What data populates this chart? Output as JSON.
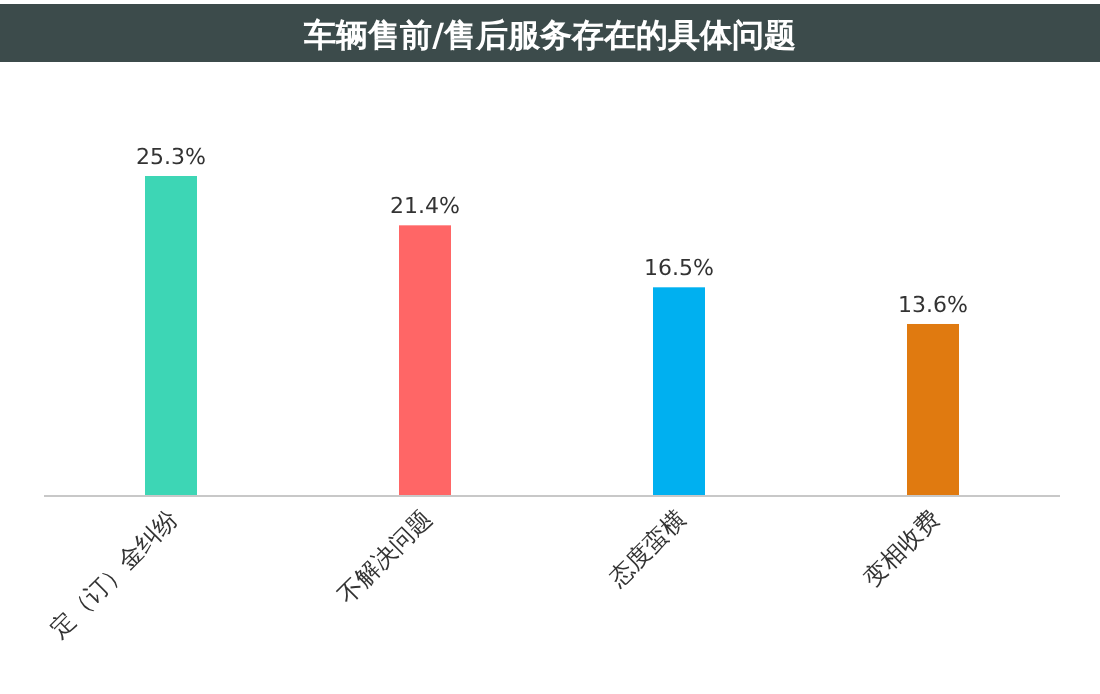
{
  "chart_data": {
    "type": "bar",
    "title": "车辆售前/售后服务存在的具体问题",
    "categories": [
      "定（订）金纠纷",
      "不解决问题",
      "态度蛮横",
      "变相收费"
    ],
    "values": [
      25.3,
      21.4,
      16.5,
      13.6
    ],
    "colors": [
      "#3dd6b5",
      "#ff6666",
      "#00b0f0",
      "#e07a10"
    ],
    "value_labels": [
      "25.3%",
      "21.4%",
      "16.5%",
      "13.6%"
    ]
  }
}
